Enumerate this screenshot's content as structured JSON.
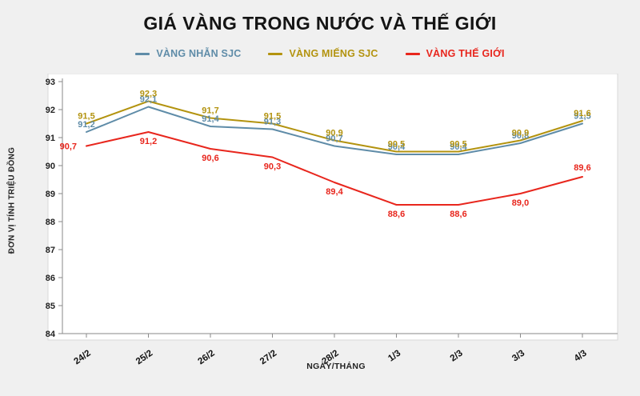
{
  "chart_data": {
    "type": "line",
    "title": "GIÁ VÀNG TRONG NƯỚC VÀ THẾ GIỚI",
    "xlabel": "NGÀY/THÁNG",
    "ylabel": "ĐƠN VỊ TÍNH TRIỆU ĐỒNG",
    "ylim": [
      84,
      93
    ],
    "ytick_step": 1,
    "grid": false,
    "legend_position": "top",
    "categories": [
      "24/2",
      "25/2",
      "26/2",
      "27/2",
      "28/2",
      "1/3",
      "2/3",
      "3/3",
      "4/3"
    ],
    "series": [
      {
        "name": "VÀNG NHẪN SJC",
        "color": "#5f8ca8",
        "values": [
          91.2,
          92.1,
          91.4,
          91.3,
          90.7,
          90.4,
          90.4,
          90.8,
          91.5
        ],
        "labels": [
          "91,2",
          "92,1",
          "91,4",
          "91,3",
          "90,7",
          "90,4",
          "90,4",
          "90,8",
          "91,5"
        ]
      },
      {
        "name": "VÀNG MIẾNG SJC",
        "color": "#b3930f",
        "values": [
          91.5,
          92.3,
          91.7,
          91.5,
          90.9,
          90.5,
          90.5,
          90.9,
          91.6
        ],
        "labels": [
          "91,5",
          "92,3",
          "91,7",
          "91,5",
          "90,9",
          "90,5",
          "90,5",
          "90,9",
          "91,6"
        ]
      },
      {
        "name": "VÀNG THẾ GIỚI",
        "color": "#e8261d",
        "values": [
          90.7,
          91.2,
          90.6,
          90.3,
          89.4,
          88.6,
          88.6,
          89.0,
          89.6
        ],
        "labels": [
          "90,7",
          "91,2",
          "90,6",
          "90,3",
          "89,4",
          "88,6",
          "88,6",
          "89,0",
          "89,6"
        ]
      }
    ]
  }
}
